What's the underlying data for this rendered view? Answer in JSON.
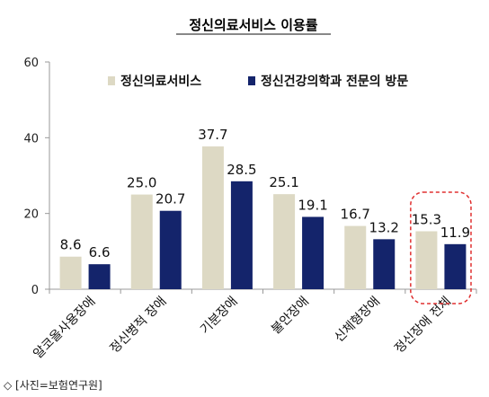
{
  "chart_data": {
    "type": "bar",
    "title": "정신의료서비스 이용률",
    "categories": [
      "알코올사용장애",
      "정신병적 장애",
      "기분장애",
      "불안장애",
      "신체형장애",
      "정신장애 전체"
    ],
    "series": [
      {
        "name": "정신의료서비스",
        "color": "#ddd9c4",
        "values": [
          8.6,
          25.0,
          37.7,
          25.1,
          16.7,
          15.3
        ]
      },
      {
        "name": "정신건강의학과 전문의 방문",
        "color": "#14246b",
        "values": [
          6.6,
          20.7,
          28.5,
          19.1,
          13.2,
          11.9
        ]
      }
    ],
    "value_labels": [
      [
        "8.6",
        "25.0",
        "37.7",
        "25.1",
        "16.7",
        "15.3"
      ],
      [
        "6.6",
        "20.7",
        "28.5",
        "19.1",
        "13.2",
        "11.9"
      ]
    ],
    "ylim": [
      0,
      60
    ],
    "yticks": [
      0,
      20,
      40,
      60
    ],
    "xlabel": "",
    "ylabel": "",
    "grid": false,
    "legend_placement": "top",
    "highlight_category": "정신장애 전체",
    "highlight_color": "#e03030"
  },
  "caption": "◇ [사진=보험연구원]"
}
